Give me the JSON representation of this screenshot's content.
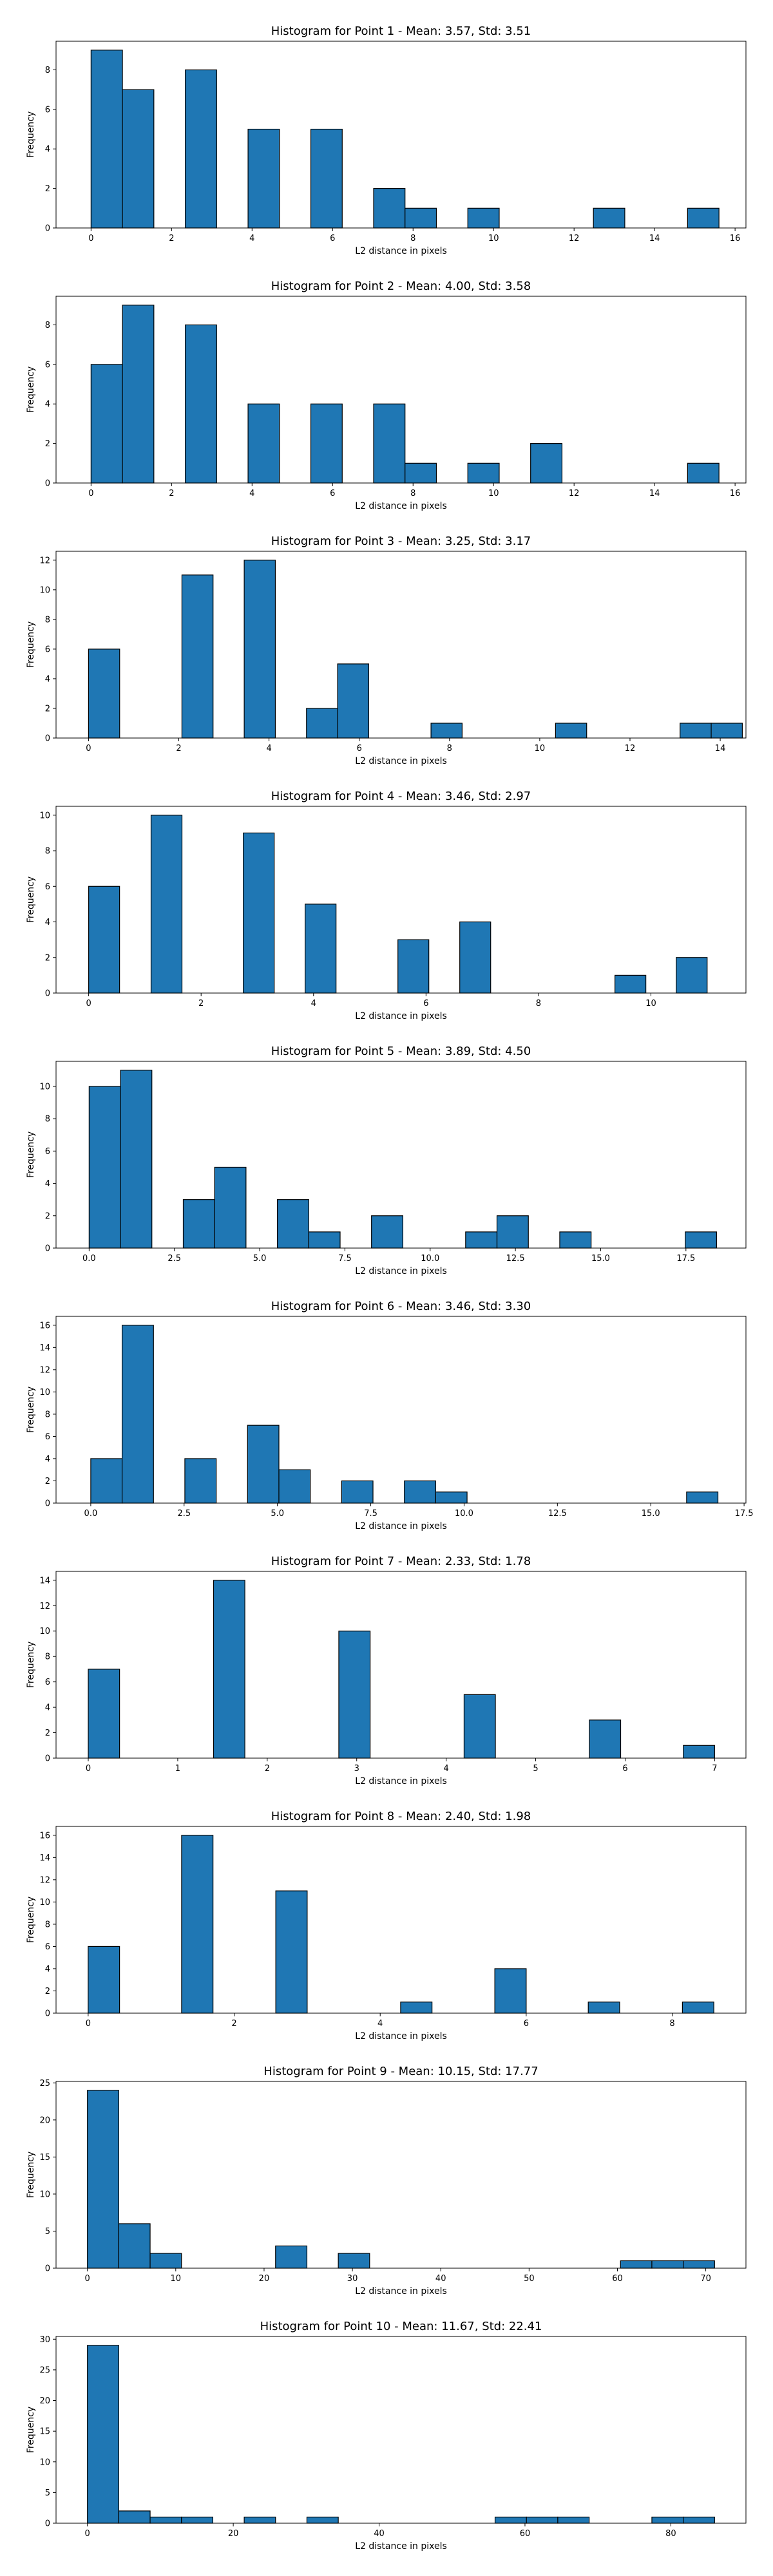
{
  "figure": {
    "bar_color": "#1f77b4",
    "edge_color": "#000000"
  },
  "chart_data": [
    {
      "type": "bar",
      "title": "Histogram for Point 1 - Mean: 3.57, Std: 3.51",
      "xlabel": "L2 distance in pixels",
      "ylabel": "Frequency",
      "xlim": [
        -0.87,
        16.27
      ],
      "ylim": [
        0,
        9.45
      ],
      "xticks": [
        0,
        2,
        4,
        6,
        8,
        10,
        12,
        14,
        16
      ],
      "yticks": [
        0,
        2,
        4,
        6,
        8
      ],
      "bins": [
        [
          0,
          0.78
        ],
        [
          0.78,
          1.56
        ],
        [
          2.34,
          3.12
        ],
        [
          3.9,
          4.68
        ],
        [
          5.46,
          6.24
        ],
        [
          7.02,
          7.8
        ],
        [
          7.8,
          8.58
        ],
        [
          9.36,
          10.14
        ],
        [
          12.48,
          13.26
        ],
        [
          14.82,
          15.6
        ]
      ],
      "values": [
        9,
        7,
        8,
        5,
        5,
        2,
        1,
        1,
        1,
        1
      ]
    },
    {
      "type": "bar",
      "title": "Histogram for Point 2 - Mean: 4.00, Std: 3.58",
      "xlabel": "L2 distance in pixels",
      "ylabel": "Frequency",
      "xlim": [
        -0.87,
        16.27
      ],
      "ylim": [
        0,
        9.45
      ],
      "xticks": [
        0,
        2,
        4,
        6,
        8,
        10,
        12,
        14,
        16
      ],
      "yticks": [
        0,
        2,
        4,
        6,
        8
      ],
      "bins": [
        [
          0,
          0.78
        ],
        [
          0.78,
          1.56
        ],
        [
          2.34,
          3.12
        ],
        [
          3.9,
          4.68
        ],
        [
          5.46,
          6.24
        ],
        [
          7.02,
          7.8
        ],
        [
          7.8,
          8.58
        ],
        [
          9.36,
          10.14
        ],
        [
          10.92,
          11.7
        ],
        [
          14.82,
          15.6
        ]
      ],
      "values": [
        6,
        9,
        8,
        4,
        4,
        4,
        1,
        1,
        2,
        1
      ]
    },
    {
      "type": "bar",
      "title": "Histogram for Point 3 - Mean: 3.25, Std: 3.17",
      "xlabel": "L2 distance in pixels",
      "ylabel": "Frequency",
      "xlim": [
        -0.72,
        14.57
      ],
      "ylim": [
        0,
        12.6
      ],
      "xticks": [
        0,
        2,
        4,
        6,
        8,
        10,
        12,
        14
      ],
      "yticks": [
        0,
        2,
        4,
        6,
        8,
        10,
        12
      ],
      "bins": [
        [
          0,
          0.69
        ],
        [
          2.07,
          2.76
        ],
        [
          3.45,
          4.14
        ],
        [
          4.83,
          5.52
        ],
        [
          5.52,
          6.21
        ],
        [
          7.59,
          8.28
        ],
        [
          10.35,
          11.04
        ],
        [
          13.11,
          13.8
        ],
        [
          13.8,
          14.49
        ]
      ],
      "values": [
        6,
        11,
        12,
        2,
        5,
        1,
        1,
        1,
        1
      ]
    },
    {
      "type": "bar",
      "title": "Histogram for Point 4 - Mean: 3.46, Std: 2.97",
      "xlabel": "L2 distance in pixels",
      "ylabel": "Frequency",
      "xlim": [
        -0.58,
        11.69
      ],
      "ylim": [
        0,
        10.5
      ],
      "xticks": [
        0,
        2,
        4,
        6,
        8,
        10
      ],
      "yticks": [
        0,
        2,
        4,
        6,
        8,
        10
      ],
      "bins": [
        [
          0,
          0.55
        ],
        [
          1.11,
          1.66
        ],
        [
          2.75,
          3.3
        ],
        [
          3.85,
          4.4
        ],
        [
          5.5,
          6.05
        ],
        [
          6.6,
          7.15
        ],
        [
          9.36,
          9.91
        ],
        [
          10.45,
          11.0
        ]
      ],
      "values": [
        6,
        10,
        9,
        5,
        3,
        4,
        1,
        2
      ]
    },
    {
      "type": "bar",
      "title": "Histogram for Point 5 - Mean: 3.89, Std: 4.50",
      "xlabel": "L2 distance in pixels",
      "ylabel": "Frequency",
      "xlim": [
        -0.97,
        19.26
      ],
      "ylim": [
        0,
        11.55
      ],
      "xticks": [
        0.0,
        2.5,
        5.0,
        7.5,
        10.0,
        12.5,
        15.0,
        17.5
      ],
      "yticks": [
        0,
        2,
        4,
        6,
        8,
        10
      ],
      "bins": [
        [
          0,
          0.92
        ],
        [
          0.92,
          1.84
        ],
        [
          2.76,
          3.68
        ],
        [
          3.68,
          4.6
        ],
        [
          5.52,
          6.44
        ],
        [
          6.44,
          7.36
        ],
        [
          8.28,
          9.2
        ],
        [
          11.04,
          11.96
        ],
        [
          11.96,
          12.88
        ],
        [
          13.8,
          14.72
        ],
        [
          17.48,
          18.4
        ]
      ],
      "values": [
        10,
        11,
        3,
        5,
        3,
        1,
        2,
        1,
        2,
        1,
        1
      ]
    },
    {
      "type": "bar",
      "title": "Histogram for Point 6 - Mean: 3.46, Std: 3.30",
      "xlabel": "L2 distance in pixels",
      "ylabel": "Frequency",
      "xlim": [
        -0.93,
        17.55
      ],
      "ylim": [
        0,
        16.8
      ],
      "xticks": [
        0.0,
        2.5,
        5.0,
        7.5,
        10.0,
        12.5,
        15.0,
        17.5
      ],
      "yticks": [
        0,
        2,
        4,
        6,
        8,
        10,
        12,
        14,
        16
      ],
      "bins": [
        [
          0,
          0.84
        ],
        [
          0.84,
          1.68
        ],
        [
          2.52,
          3.36
        ],
        [
          4.2,
          5.04
        ],
        [
          5.04,
          5.88
        ],
        [
          6.72,
          7.56
        ],
        [
          8.4,
          9.24
        ],
        [
          9.24,
          10.08
        ],
        [
          15.96,
          16.8
        ]
      ],
      "values": [
        4,
        16,
        4,
        7,
        3,
        2,
        2,
        1,
        1
      ]
    },
    {
      "type": "bar",
      "title": "Histogram for Point 7 - Mean: 2.33, Std: 1.78",
      "xlabel": "L2 distance in pixels",
      "ylabel": "Frequency",
      "xlim": [
        -0.36,
        7.35
      ],
      "ylim": [
        0,
        14.7
      ],
      "xticks": [
        0,
        1,
        2,
        3,
        4,
        5,
        6,
        7
      ],
      "yticks": [
        0,
        2,
        4,
        6,
        8,
        10,
        12,
        14
      ],
      "bins": [
        [
          0,
          0.35
        ],
        [
          1.4,
          1.75
        ],
        [
          2.8,
          3.15
        ],
        [
          4.2,
          4.55
        ],
        [
          5.6,
          5.95
        ],
        [
          6.65,
          7.0
        ]
      ],
      "values": [
        7,
        14,
        10,
        5,
        3,
        1
      ]
    },
    {
      "type": "bar",
      "title": "Histogram for Point 8 - Mean: 2.40, Std: 1.98",
      "xlabel": "L2 distance in pixels",
      "ylabel": "Frequency",
      "xlim": [
        -0.44,
        9.01
      ],
      "ylim": [
        0,
        16.8
      ],
      "xticks": [
        0,
        2,
        4,
        6,
        8
      ],
      "yticks": [
        0,
        2,
        4,
        6,
        8,
        10,
        12,
        14,
        16
      ],
      "bins": [
        [
          0,
          0.43
        ],
        [
          1.28,
          1.71
        ],
        [
          2.57,
          3.0
        ],
        [
          4.28,
          4.71
        ],
        [
          5.57,
          6.0
        ],
        [
          6.85,
          7.28
        ],
        [
          8.14,
          8.57
        ]
      ],
      "values": [
        6,
        16,
        11,
        1,
        4,
        1,
        1
      ]
    },
    {
      "type": "bar",
      "title": "Histogram for Point 9 - Mean: 10.15, Std: 17.77",
      "xlabel": "L2 distance in pixels",
      "ylabel": "Frequency",
      "xlim": [
        -3.55,
        74.55
      ],
      "ylim": [
        0,
        25.2
      ],
      "xticks": [
        0,
        10,
        20,
        30,
        40,
        50,
        60,
        70
      ],
      "yticks": [
        0,
        5,
        10,
        15,
        20,
        25
      ],
      "bins": [
        [
          0,
          3.55
        ],
        [
          3.55,
          7.1
        ],
        [
          7.1,
          10.65
        ],
        [
          21.3,
          24.85
        ],
        [
          28.4,
          31.95
        ],
        [
          60.35,
          63.9
        ],
        [
          63.9,
          67.45
        ],
        [
          67.45,
          71.0
        ]
      ],
      "values": [
        24,
        6,
        2,
        3,
        2,
        1,
        1,
        1
      ]
    },
    {
      "type": "bar",
      "title": "Histogram for Point 10 - Mean: 11.67, Std: 22.41",
      "xlabel": "L2 distance in pixels",
      "ylabel": "Frequency",
      "xlim": [
        -4.3,
        90.3
      ],
      "ylim": [
        0,
        30.45
      ],
      "xticks": [
        0,
        20,
        40,
        60,
        80
      ],
      "yticks": [
        0,
        5,
        10,
        15,
        20,
        25,
        30
      ],
      "bins": [
        [
          0,
          4.3
        ],
        [
          4.3,
          8.6
        ],
        [
          8.6,
          12.9
        ],
        [
          12.9,
          17.2
        ],
        [
          21.5,
          25.8
        ],
        [
          30.1,
          34.4
        ],
        [
          55.9,
          60.2
        ],
        [
          60.2,
          64.5
        ],
        [
          64.5,
          68.8
        ],
        [
          77.4,
          81.7
        ],
        [
          81.7,
          86.0
        ]
      ],
      "values": [
        29,
        2,
        1,
        1,
        1,
        1,
        1,
        1,
        1,
        1,
        1
      ]
    }
  ]
}
